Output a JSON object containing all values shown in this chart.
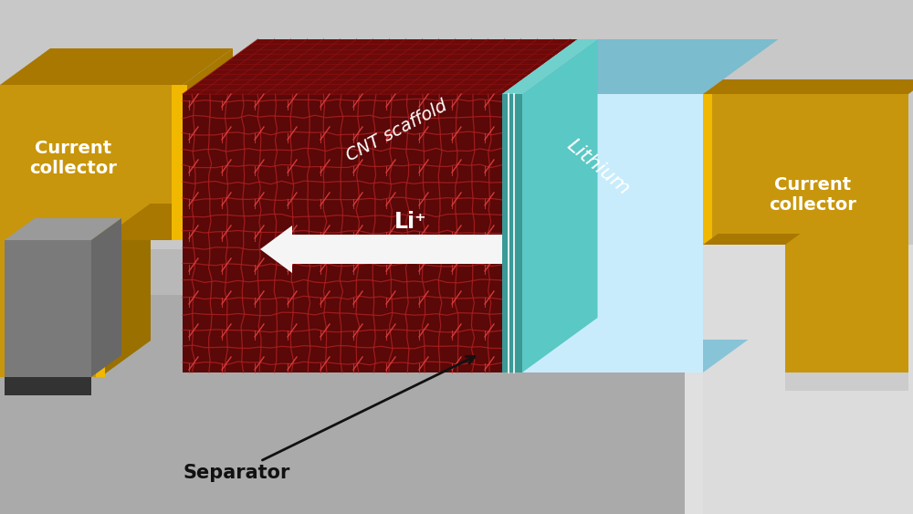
{
  "colors": {
    "gold_front": "#C8960C",
    "gold_top": "#A87800",
    "gold_bright": "#E0A800",
    "gold_edge": "#F0B800",
    "gray_bg": "#B0B0B0",
    "gray_floor": "#A8A8A8",
    "gray_floor2": "#C0C0C0",
    "gray_dark": "#555555",
    "gray_med": "#888888",
    "gray_block": "#7A7A7A",
    "gray_block_top": "#9A9A9A",
    "black": "#111111",
    "cnt_dark": "#5A0808",
    "cnt_mid": "#8B1010",
    "cnt_bright": "#C03030",
    "cnt_top": "#6A0A0A",
    "sep_teal": "#3A9A96",
    "sep_teal_light": "#5AC8C4",
    "sep_teal_top": "#70D0CC",
    "li_front": "#A8E0F0",
    "li_top": "#7BBCCE",
    "li_top2": "#8ECAD8",
    "li_side": "#C8ECFC",
    "white": "#FFFFFF",
    "arrow_fill": "#E8E8E8",
    "near_white": "#F5F5F5"
  },
  "labels": {
    "cc_left": "Current\ncollector",
    "cc_right": "Current\ncollector",
    "cnt": "CNT scaffold",
    "li": "Lithium",
    "li_ion": "Li⁺",
    "separator": "Separator"
  }
}
